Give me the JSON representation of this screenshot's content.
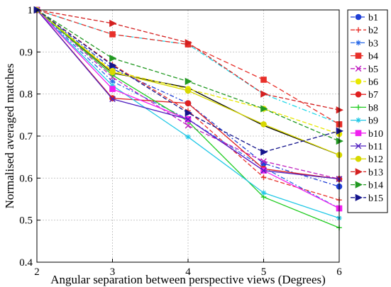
{
  "chart_data": {
    "type": "line",
    "title": "",
    "xlabel": "Angular separation between perspective views (Degrees)",
    "ylabel": "Normalised averaged matches",
    "x": [
      2,
      3,
      4,
      5,
      6
    ],
    "xlim": [
      2,
      6
    ],
    "ylim": [
      0.4,
      1.0
    ],
    "xticks": [
      "2",
      "3",
      "4",
      "5",
      "6"
    ],
    "yticks": [
      "0.4",
      "0.5",
      "0.6",
      "0.7",
      "0.8",
      "0.9",
      "1"
    ],
    "grid": true,
    "legend_position": "right",
    "series": [
      {
        "name": "b1",
        "color": "#1f3fd6",
        "dash": "6,3,2,3",
        "marker": "circle",
        "values": [
          1,
          0.86,
          0.778,
          0.635,
          0.58
        ]
      },
      {
        "name": "b2",
        "color": "#e8302a",
        "dash": "6,3",
        "marker": "plus",
        "values": [
          1,
          0.87,
          0.76,
          0.602,
          0.548
        ]
      },
      {
        "name": "b3",
        "color": "#2a6ae8",
        "dash": "6,3,2,3",
        "marker": "star",
        "values": [
          1,
          0.83,
          0.74,
          0.625,
          0.528
        ]
      },
      {
        "name": "b4",
        "color": "#e8302a",
        "dash": "7,4",
        "marker": "square",
        "values": [
          1,
          0.942,
          0.918,
          0.834,
          0.728
        ]
      },
      {
        "name": "b5",
        "color": "#c020c0",
        "dash": "6,3",
        "marker": "x",
        "values": [
          1,
          0.84,
          0.725,
          0.64,
          0.598
        ]
      },
      {
        "name": "b6",
        "color": "#e8e800",
        "dash": "6,3",
        "marker": "circle",
        "values": [
          1,
          0.855,
          0.812,
          0.765,
          0.705
        ]
      },
      {
        "name": "b7",
        "color": "#e02020",
        "dash": "",
        "marker": "circle",
        "values": [
          1,
          0.79,
          0.778,
          0.622,
          0.598
        ]
      },
      {
        "name": "b8",
        "color": "#22cc22",
        "dash": "",
        "marker": "plus",
        "values": [
          1,
          0.845,
          0.735,
          0.555,
          0.482
        ]
      },
      {
        "name": "b9",
        "color": "#22c8e6",
        "dash": "",
        "marker": "star",
        "values": [
          1,
          0.82,
          0.698,
          0.565,
          0.505
        ]
      },
      {
        "name": "b10",
        "color": "#f020f0",
        "dash": "",
        "marker": "square",
        "values": [
          1,
          0.812,
          0.74,
          0.618,
          0.528
        ]
      },
      {
        "name": "b11",
        "color": "#5020c0",
        "dash": "",
        "marker": "x",
        "values": [
          1,
          0.788,
          0.74,
          0.618,
          0.598
        ]
      },
      {
        "name": "b12",
        "color": "#d8d800",
        "dash": "",
        "marker": "circle",
        "values": [
          1,
          0.852,
          0.808,
          0.728,
          0.655
        ]
      },
      {
        "name": "b13",
        "color": "#d42020",
        "dash": "6,3",
        "marker": "triangle",
        "values": [
          1,
          0.968,
          0.922,
          0.8,
          0.762
        ]
      },
      {
        "name": "b14",
        "color": "#229922",
        "dash": "6,3",
        "marker": "triangle",
        "values": [
          1,
          0.885,
          0.83,
          0.765,
          0.688
        ]
      },
      {
        "name": "b15",
        "color": "#14148c",
        "dash": "6,3",
        "marker": "triangle",
        "values": [
          1,
          0.868,
          0.755,
          0.662,
          0.712
        ]
      }
    ],
    "extra_lines": [
      {
        "color": "#000000",
        "dash": "",
        "values": [
          1,
          0.85,
          0.815,
          0.725,
          0.655
        ]
      },
      {
        "color": "#22d8e8",
        "dash": "7,3,2,3",
        "values": [
          1,
          0.942,
          0.918,
          0.8,
          0.73
        ]
      }
    ]
  }
}
